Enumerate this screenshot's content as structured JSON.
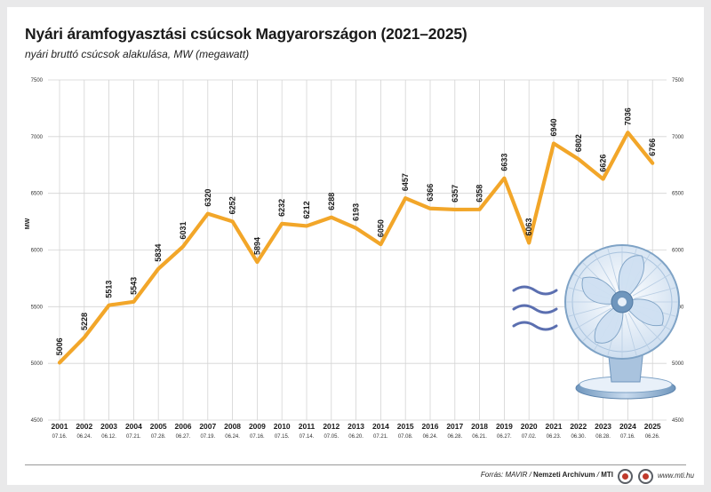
{
  "title": "Nyári áramfogyasztási csúcsok Magyarországon (2021–2025)",
  "subtitle": "nyári bruttó csúcsok alakulása, MW (megawatt)",
  "source": {
    "prefix": "Forrás: MAVIR / ",
    "archive": "Nemzeti Archívum",
    "sep": " / ",
    "agency": "MTI"
  },
  "website": "www.mti.hu",
  "colors": {
    "line": "#f2a629",
    "grid": "#d4d4d4",
    "fan_light": "#dde8f4",
    "fan_dark": "#7fa3c6"
  },
  "icons": [
    "wind-waves-icon",
    "fan-illustration",
    "mtva-logo-icon",
    "mti-logo-icon"
  ],
  "chart_data": {
    "type": "line",
    "title": "Nyári áramfogyasztási csúcsok Magyarországon (2021–2025)",
    "subtitle": "nyári bruttó csúcsok alakulása, MW (megawatt)",
    "ylabel": "MW",
    "ylim": [
      4500,
      7500
    ],
    "yticks": [
      "4500",
      "5000",
      "5500",
      "6000",
      "6500",
      "7000",
      "7500"
    ],
    "grid": true,
    "categories": [
      "2001",
      "2002",
      "2003",
      "2004",
      "2005",
      "2006",
      "2007",
      "2008",
      "2009",
      "2010",
      "2011",
      "2012",
      "2013",
      "2014",
      "2015",
      "2016",
      "2017",
      "2018",
      "2019",
      "2020",
      "2021",
      "2022",
      "2023",
      "2024",
      "2025"
    ],
    "dates": [
      "07.16.",
      "06.24.",
      "06.12.",
      "07.21.",
      "07.28.",
      "06.27.",
      "07.19.",
      "06.24.",
      "07.16.",
      "07.15.",
      "07.14.",
      "07.05.",
      "06.20.",
      "07.21.",
      "07.08.",
      "06.24.",
      "06.28.",
      "06.21.",
      "06.27.",
      "07.02.",
      "06.23.",
      "06.30.",
      "08.28.",
      "07.16.",
      "06.26."
    ],
    "series": [
      {
        "values": [
          5006,
          5228,
          5513,
          5543,
          5834,
          6031,
          6320,
          6252,
          5894,
          6232,
          6212,
          6288,
          6193,
          6050,
          6457,
          6366,
          6357,
          6358,
          6633,
          6063,
          6940,
          6802,
          6626,
          7036,
          6766
        ]
      }
    ]
  }
}
